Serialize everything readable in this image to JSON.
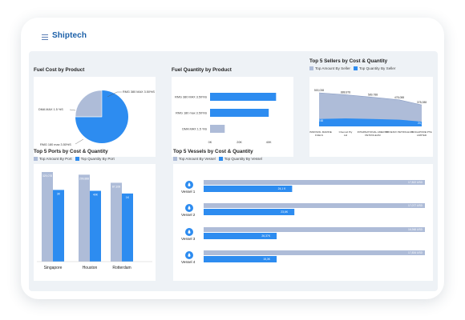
{
  "app": {
    "logo": "Shiptech"
  },
  "colors": {
    "light": "#aebcd8",
    "dark": "#2d8cf0",
    "pie_dark": "#2d8cf0",
    "pie_light": "#aebcd8"
  },
  "fuel_cost": {
    "title": "Fuel Cost by Product",
    "chart_data": {
      "type": "pie",
      "labels": [
        "RMG 380 MAX 3.50%S",
        "DMA MAX 1.5 %S",
        "RMG 180 max 3.50%S"
      ],
      "values": [
        25,
        0,
        75
      ]
    }
  },
  "fuel_qty": {
    "title": "Fuel Quantity by Product",
    "chart_data": {
      "type": "bar",
      "orientation": "horizontal",
      "categories": [
        "RMG 380 MAX 3.50%S",
        "RMG 180 max 3.50%S",
        "DMA MAX 1.5 %S"
      ],
      "values": [
        45,
        40,
        10
      ],
      "x_ticks": [
        "0K",
        "20K",
        "40K"
      ],
      "xlim": [
        0,
        47
      ]
    }
  },
  "sellers": {
    "title": "Top 5 Sellers by Cost & Quantity",
    "legend": [
      "Top Amount By Seller",
      "Top Quantity By Seller"
    ],
    "chart_data": {
      "type": "area",
      "categories": [
        "COSMOSOIL MARINE FUELS",
        "Chemoil Pty Ltd",
        "INTERNATIONAL AMERITA PETROLEUM",
        "PHOENIX PETROLEUM",
        "SINGAPORE PTE LIMITED"
      ],
      "series": [
        {
          "name": "Top Amount By Seller",
          "values": [
            85,
            82,
            78,
            74,
            66
          ],
          "labels": [
            "500,038",
            "888,878",
            "589,788",
            "478,088",
            "378,088"
          ]
        },
        {
          "name": "Top Quantity By Seller",
          "values": [
            44,
            45,
            44,
            43,
            40
          ],
          "labels": [
            "34,748",
            "",
            "",
            "",
            "24,788"
          ]
        }
      ]
    }
  },
  "ports": {
    "title": "Top 5 Ports by Cost & Quantity",
    "legend": [
      "Top Amount By Port",
      "Top Quantity By Port"
    ],
    "chart_data": {
      "type": "bar",
      "categories": [
        "Singapore",
        "Houston",
        "Rotterdam"
      ],
      "series": [
        {
          "name": "Top Amount By Port",
          "values": [
            100,
            97,
            88
          ],
          "labels": [
            "329,078",
            "299,888",
            "87,108"
          ]
        },
        {
          "name": "Top Quantity By Port",
          "values": [
            80,
            79,
            76
          ],
          "labels": [
            "3K",
            "40K",
            "1K"
          ]
        }
      ],
      "ylim": [
        0,
        100
      ]
    }
  },
  "vessels": {
    "title": "Top 5 Vessels by Cost & Quantity",
    "legend": [
      "Top Amount By Vessel",
      "Top Quantity By Vessel"
    ],
    "chart_data": {
      "type": "bar",
      "orientation": "horizontal",
      "categories": [
        "Vessel 1",
        "Vessel 2",
        "Vessel 3",
        "Vessel 4"
      ],
      "series": [
        {
          "name": "Top Amount By Vessel",
          "values": [
            100,
            100,
            100,
            100
          ],
          "labels": [
            "17,822 USD",
            "17,077 USD",
            "16,948 USD",
            "17,834 USD"
          ]
        },
        {
          "name": "Top Quantity By Vessel",
          "values": [
            40,
            41,
            33,
            33
          ],
          "labels": [
            "24,1 K",
            "23,6K",
            "26,37K",
            "15,3K"
          ]
        }
      ],
      "xlim": [
        0,
        100
      ]
    }
  }
}
